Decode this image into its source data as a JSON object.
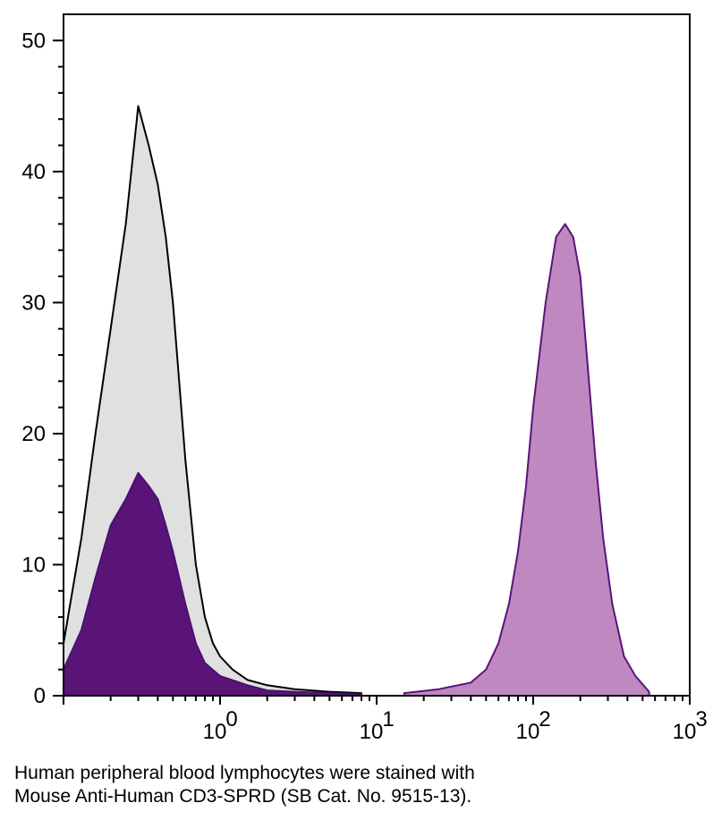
{
  "caption": {
    "line1": "Human peripheral blood lymphocytes were stained with",
    "line2": "Mouse Anti-Human CD3-SPRD (SB Cat. No. 9515-13)."
  },
  "chart_data": {
    "type": "area",
    "x_scale": "log",
    "xlim": [
      0.1,
      1000
    ],
    "ylim": [
      0,
      52
    ],
    "y_ticks": [
      0,
      10,
      20,
      30,
      40,
      50
    ],
    "x_ticks": [
      {
        "value": 1,
        "label": "10",
        "exp": "0"
      },
      {
        "value": 10,
        "label": "10",
        "exp": "1"
      },
      {
        "value": 100,
        "label": "10",
        "exp": "2"
      },
      {
        "value": 1000,
        "label": "10",
        "exp": "3"
      }
    ],
    "grid": false,
    "series": [
      {
        "fill": "#e0e0e0",
        "stroke": "#000000",
        "x": [
          0.1,
          0.13,
          0.16,
          0.2,
          0.25,
          0.3,
          0.35,
          0.4,
          0.45,
          0.5,
          0.6,
          0.7,
          0.8,
          0.9,
          1.0,
          1.2,
          1.5,
          2,
          3,
          5,
          8
        ],
        "y": [
          4,
          12,
          20,
          28,
          36,
          45,
          42,
          39,
          35,
          30,
          18,
          10,
          6,
          4,
          3,
          2,
          1.2,
          0.8,
          0.5,
          0.3,
          0.2
        ]
      },
      {
        "fill": "#5a1478",
        "stroke": "#4a1070",
        "x": [
          0.1,
          0.13,
          0.16,
          0.2,
          0.25,
          0.3,
          0.35,
          0.4,
          0.45,
          0.5,
          0.6,
          0.7,
          0.8,
          1.0,
          1.5,
          2,
          3,
          5,
          8
        ],
        "y": [
          2,
          5,
          9,
          13,
          15,
          17,
          16,
          15,
          13,
          11,
          7,
          4,
          2.5,
          1.5,
          0.8,
          0.4,
          0.3,
          0.2,
          0.1
        ]
      },
      {
        "fill": "#c088c0",
        "stroke": "#5a1478",
        "x": [
          15,
          25,
          40,
          50,
          60,
          70,
          80,
          90,
          100,
          120,
          140,
          160,
          180,
          200,
          220,
          250,
          280,
          320,
          380,
          450,
          550
        ],
        "y": [
          0.2,
          0.5,
          1,
          2,
          4,
          7,
          11,
          16,
          22,
          30,
          35,
          36,
          35,
          32,
          26,
          18,
          12,
          7,
          3,
          1.5,
          0.3
        ]
      }
    ]
  }
}
